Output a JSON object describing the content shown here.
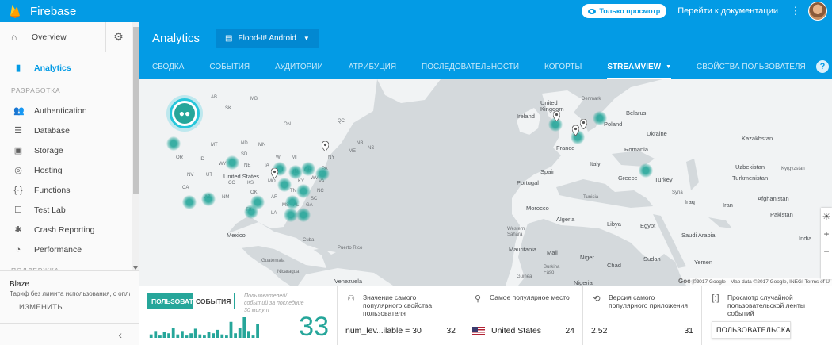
{
  "app": {
    "brand": "Firebase"
  },
  "topbar": {
    "view_only_badge": "Только просмотр",
    "docs_link": "Перейти к документации",
    "menu_icon": "kebab-menu-icon",
    "avatar_icon": "user-avatar"
  },
  "sidebar": {
    "overview_label": "Overview",
    "active_item": "Analytics",
    "section_develop": "РАЗРАБОТКА",
    "items": [
      {
        "label": "Authentication",
        "icon": "people-icon"
      },
      {
        "label": "Database",
        "icon": "database-icon"
      },
      {
        "label": "Storage",
        "icon": "storage-icon"
      },
      {
        "label": "Hosting",
        "icon": "hosting-icon"
      },
      {
        "label": "Functions",
        "icon": "functions-icon"
      },
      {
        "label": "Test Lab",
        "icon": "test-lab-icon"
      },
      {
        "label": "Crash Reporting",
        "icon": "bug-icon"
      },
      {
        "label": "Performance",
        "icon": "performance-icon"
      }
    ],
    "section_grow": "ПОДДЕРЖКА",
    "plan_name": "Blaze",
    "plan_desc": "Тариф без лимита использования, с опла",
    "plan_button": "ИЗМЕНИТЬ"
  },
  "header": {
    "title": "Analytics",
    "app_selector": "Flood-It! Android",
    "tabs": [
      "СВОДКА",
      "СОБЫТИЯ",
      "АУДИТОРИИ",
      "АТРИБУЦИЯ",
      "ПОСЛЕДОВАТЕЛЬНОСТИ",
      "КОГОРТЫ",
      "STREAMVIEW",
      "СВОЙСТВА ПОЛЬЗОВАТЕЛЯ"
    ],
    "active_tab": "STREAMVIEW"
  },
  "map": {
    "labels": {
      "ireland": "Ireland",
      "uk": "United Kingdom",
      "denmark": "Denmark",
      "belarus": "Belarus",
      "poland": "Poland",
      "ukraine": "Ukraine",
      "france": "France",
      "romania": "Romania",
      "italy": "Italy",
      "spain": "Spain",
      "portugal": "Portugal",
      "greece": "Greece",
      "turkey": "Turkey",
      "kazakhstan": "Kazakhstan",
      "uzbekistan": "Uzbekistan",
      "kyrgyzstan": "Kyrgyzstan",
      "turkmenistan": "Turkmenistan",
      "afghanistan": "Afghanistan",
      "pakistan": "Pakistan",
      "iran": "Iran",
      "iraq": "Iraq",
      "syria": "Syria",
      "india": "India",
      "tunisia": "Tunisia",
      "morocco": "Morocco",
      "algeria": "Algeria",
      "libya": "Libya",
      "egypt": "Egypt",
      "western_sahara": "Western Sahara",
      "mauritania": "Mauritania",
      "mali": "Mali",
      "niger": "Niger",
      "chad": "Chad",
      "sudan": "Sudan",
      "saudi_arabia": "Saudi Arabia",
      "yemen": "Yemen",
      "burkina_faso": "Burkina Faso",
      "guinea": "Guinea",
      "nigeria": "Nigeria",
      "us": "United States",
      "mexico": "Mexico",
      "cuba": "Cuba",
      "puerto_rico": "Puerto Rico",
      "guatemala": "Guatemala",
      "nicaragua": "Nicaragua",
      "venezuela": "Venezuela",
      "ab": "AB",
      "sk": "SK",
      "mb": "MB",
      "on": "ON",
      "qc": "QC",
      "mt": "MT",
      "nd": "ND",
      "mn": "MN",
      "or": "OR",
      "id": "ID",
      "sd": "SD",
      "wy": "WY",
      "wi": "WI",
      "mi": "MI",
      "ne": "NE",
      "ia": "IA",
      "nv": "NV",
      "ut": "UT",
      "co": "CO",
      "ks": "KS",
      "mo": "MO",
      "ca": "CA",
      "az": "AZ",
      "nm": "NM",
      "ok": "OK",
      "ar": "AR",
      "tn": "TN",
      "ms": "MS",
      "al": "AL",
      "ga": "GA",
      "la": "LA",
      "tx": "TX",
      "pa": "PA",
      "ny": "NY",
      "va": "VA",
      "nc": "NC",
      "sc": "SC",
      "ky": "KY",
      "in": "IN",
      "oh": "OH",
      "wv": "WV",
      "il": "IL",
      "ns": "NS",
      "nb": "NB",
      "me": "ME"
    },
    "attribution": "©2017 Google - Map data ©2017 Google, INEGI  Terms of U",
    "google_logo": "Google",
    "users_icon": "users-group-icon",
    "zoom_in": "+",
    "zoom_out": "−",
    "brightness_icon": "☀"
  },
  "cards": {
    "users": {
      "toggle_on": "ПОЛЬЗОВАТЕЛИ",
      "toggle_off": "СОБЫТИЯ",
      "note": "Пользователей/событий за последние 30 минут",
      "count": "33",
      "spark": [
        3,
        6,
        2,
        5,
        4,
        9,
        3,
        6,
        2,
        4,
        8,
        3,
        2,
        5,
        4,
        7,
        3,
        2,
        14,
        4,
        9,
        18,
        6,
        2,
        12
      ]
    },
    "property": {
      "title": "Значение самого популярного свойства пользователя",
      "value_label": "num_lev...ilable = 30",
      "value": "32"
    },
    "location": {
      "title": "Самое популярное место",
      "value_label": "United States",
      "value": "24"
    },
    "version": {
      "title": "Версия самого популярного приложения",
      "value_label": "2.52",
      "value": "31"
    },
    "timeline": {
      "title": "Просмотр случайной пользовательской ленты событий",
      "button": "ПОЛЬЗОВАТЕЛЬСКАЯ"
    }
  }
}
